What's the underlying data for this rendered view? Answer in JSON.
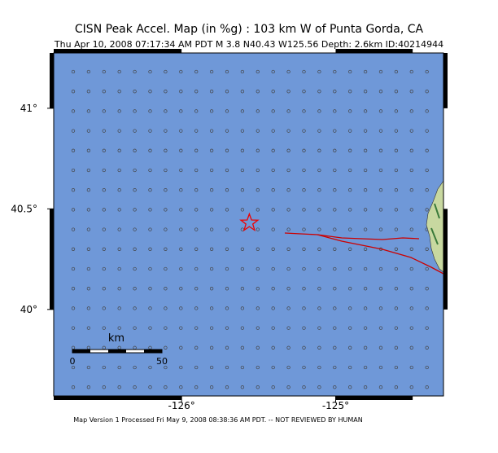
{
  "title": "CISN Peak Accel. Map (in %g) : 103 km W of Punta Gorda, CA",
  "subtitle": "Thu Apr 10, 2008 07:17:34 AM PDT   M 3.8   N40.43 W125.56   Depth: 2.6km   ID:40214944",
  "footer": "Map Version 1 Processed Fri May 9, 2008 08:38:36 AM PDT. -- NOT REVIEWED BY HUMAN",
  "map": {
    "lonlim": [
      -126.83,
      -124.3
    ],
    "latlim": [
      39.57,
      41.275
    ],
    "xticks": [
      {
        "value": -126,
        "label": "-126°"
      },
      {
        "value": -125,
        "label": "-125°"
      }
    ],
    "yticks": [
      {
        "value": 41,
        "label": "41°"
      },
      {
        "value": 40.5,
        "label": "40.5°"
      },
      {
        "value": 40,
        "label": "40°"
      }
    ],
    "epicenter": {
      "lat": 40.43,
      "lon": -125.56
    }
  },
  "scale": {
    "unit": "km",
    "start": "0",
    "end": "50"
  }
}
